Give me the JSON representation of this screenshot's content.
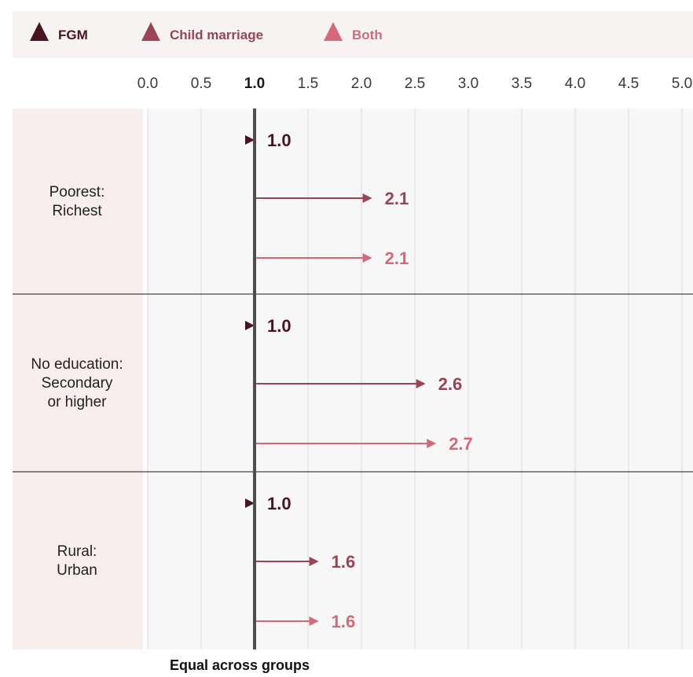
{
  "chart_data": {
    "type": "bar",
    "orientation": "horizontal",
    "xlim": [
      0,
      5
    ],
    "xticks": [
      "0.0",
      "0.5",
      "1.0",
      "1.5",
      "2.0",
      "2.5",
      "3.0",
      "3.5",
      "4.0",
      "4.5",
      "5.0"
    ],
    "reference_value": 1.0,
    "reference_label": "Equal across groups",
    "legend_position": "top",
    "colors": {
      "fgm": "#4a1420",
      "child_marriage": "#9b4456",
      "both": "#d4697a"
    },
    "legend": [
      {
        "key": "fgm",
        "label": "FGM"
      },
      {
        "key": "child_marriage",
        "label": "Child marriage"
      },
      {
        "key": "both",
        "label": "Both"
      }
    ],
    "groups": [
      {
        "label_lines": [
          "Poorest:",
          "Richest"
        ],
        "values": {
          "fgm": 1.0,
          "child_marriage": 2.1,
          "both": 2.1
        },
        "labels": {
          "fgm": "1.0",
          "child_marriage": "2.1",
          "both": "2.1"
        }
      },
      {
        "label_lines": [
          "No education:",
          "Secondary",
          "or higher"
        ],
        "values": {
          "fgm": 1.0,
          "child_marriage": 2.6,
          "both": 2.7
        },
        "labels": {
          "fgm": "1.0",
          "child_marriage": "2.6",
          "both": "2.7"
        }
      },
      {
        "label_lines": [
          "Rural:",
          "Urban"
        ],
        "values": {
          "fgm": 1.0,
          "child_marriage": 1.6,
          "both": 1.6
        },
        "labels": {
          "fgm": "1.0",
          "child_marriage": "1.6",
          "both": "1.6"
        }
      }
    ]
  }
}
